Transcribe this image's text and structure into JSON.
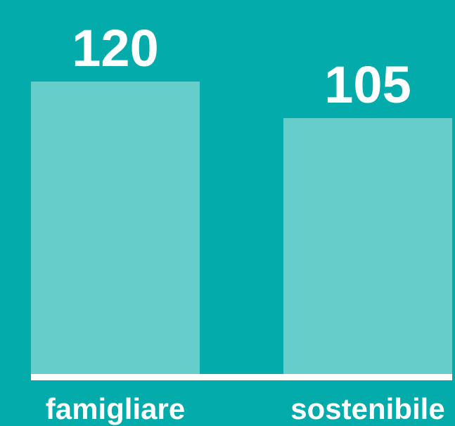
{
  "chart_data": {
    "type": "bar",
    "categories": [
      "famigliare",
      "sostenibile"
    ],
    "values": [
      120,
      105
    ],
    "color": "#66cdcb"
  }
}
